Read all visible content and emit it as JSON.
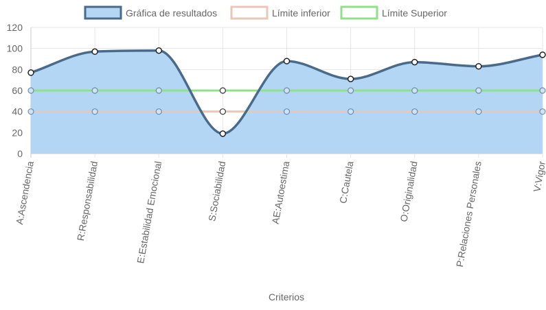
{
  "chart_data": {
    "type": "line",
    "categories": [
      "A:Ascendencia",
      "R:Responsabilidad",
      "E:Estabilidad Emocional",
      "S:Sociabilidad",
      "AE:Autoestima",
      "C:Cautela",
      "O:Originalidad",
      "P:Relaciones Personales",
      "V:Vigor"
    ],
    "series": [
      {
        "name": "Gráfica de resultados",
        "values": [
          77,
          97,
          98,
          19,
          88,
          71,
          87,
          83,
          94
        ],
        "color": "#4a6a8a",
        "fill": "#b3d6f5",
        "filled": true
      },
      {
        "name": "Límite inferior",
        "values": [
          40,
          40,
          40,
          40,
          40,
          40,
          40,
          40,
          40
        ],
        "color": "#e8c6b8",
        "filled": false
      },
      {
        "name": "Límite Superior",
        "values": [
          60,
          60,
          60,
          60,
          60,
          60,
          60,
          60,
          60
        ],
        "color": "#90e08a",
        "filled": false
      }
    ],
    "xlabel": "Criterios",
    "ylabel": "",
    "ylim": [
      0,
      120
    ],
    "yticks": [
      0,
      20,
      40,
      60,
      80,
      100,
      120
    ],
    "grid": true,
    "legend": "top-center"
  }
}
